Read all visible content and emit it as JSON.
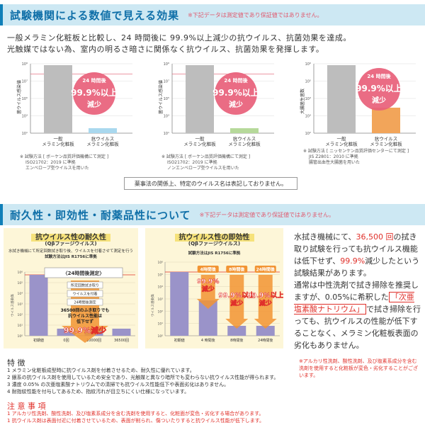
{
  "section1": {
    "title": "試験機関による数値で見える効果",
    "note": "※下記データは測定値であり保証値ではありません。",
    "lead1": "一般メラミン化粧板と比較し、24 時間後に 99.9%以上減少の抗ウイルス、抗菌効果を達成。",
    "lead2": "光触媒ではない為、室内の明るさ暗さに関係なく抗ウイルス、抗菌効果を発揮します。",
    "disclaimer": "薬事法の関係上、特定のウイルス名は表記しておりません。"
  },
  "charts_top": [
    {
      "ylabel": "菌ウイルス感染値",
      "ticks": [
        "10⁹",
        "10⁷",
        "10⁵",
        "10³",
        "10¹"
      ],
      "categories": [
        "一般\nメラミン化粧板",
        "抗ウイルス\nメラミン化粧板"
      ],
      "badge_top": "24 時間後",
      "badge_mid": "99.9%以上",
      "badge_bot": "減少",
      "bar2_color": "#a9d8ee",
      "notes": [
        "※ 試験方法 [ ボーケン品質評価機構にて測定 ]",
        "ISO21702：2019 に準拠",
        "エンベロープ型ウイルスを用いた"
      ]
    },
    {
      "ylabel": "菌ウイルス感染値",
      "ticks": [
        "10⁹",
        "10⁷",
        "10⁵",
        "10³",
        "10¹"
      ],
      "categories": [
        "一般\nメラミン化粧板",
        "抗ウイルス\nメラミン化粧板"
      ],
      "badge_top": "24 時間後",
      "badge_mid": "99.9%以上",
      "badge_bot": "減少",
      "bar2_color": "#b6d99a",
      "notes": [
        "※ 試験方法 [ ボーケン品質評価機構にて測定 ]",
        "ISO21702：2019 に準拠",
        "ノンエンベロープ型ウイルスを用いた"
      ]
    },
    {
      "ylabel": "大腸菌生菌数",
      "ticks": [
        "10⁶",
        "10⁵",
        "10⁴",
        "10³",
        "10²"
      ],
      "categories": [
        "一般\nメラミン化粧板",
        "抗ウイルス\nメラミン化粧板"
      ],
      "badge_top": "24 時間後",
      "badge_mid": "99.9%以上",
      "badge_bot": "減少",
      "bar2_color": "#f2a55a",
      "notes": [
        "※ 試験方法 [ ニッセンケン品質評価センターにて測定 ]",
        "JIS Z2801：2010 に準拠",
        "腸管出血性大腸菌を用いた"
      ]
    }
  ],
  "section2": {
    "title": "耐久性・即効性・耐薬品性について",
    "note": "※下記データは測定値であり保証値ではありません。"
  },
  "panel_left": {
    "title": "抗ウイルス性の耐久性",
    "subtitle": "(Qβファージウイルス)",
    "caption1": "水拭き機械にて所定回数拭き取り後、ウイルスを付着させて測定を行う",
    "caption2": "試験方法はJIS R1756に準拠",
    "flow_title": "〈24時間後測定〉",
    "flow_lines": [
      "所定回数拭き取り",
      "ウイルスを付着",
      "24時間後測定"
    ],
    "flow_text1": "36500回のふき取りでも",
    "flow_text2": "抗ウイルス性能は",
    "flow_text3": "低下せず",
    "flow_big": "99.9%減少",
    "categories": [
      "初期値",
      "0回",
      "10000回",
      "36500回"
    ],
    "ticks": [
      "10⁶",
      "10⁵",
      "10⁴",
      "10³",
      "10²",
      "10¹",
      "10⁰"
    ],
    "ylabel": "ウイルス感染価"
  },
  "panel_mid": {
    "title": "抗ウイルス性の即効性",
    "subtitle": "(Qβファージウイルス)",
    "caption2": "試験方法はJIS R1756に準拠",
    "categories": [
      "初期値",
      "4 時間後",
      "8時間後",
      "24時間後"
    ],
    "ticks": [
      "10⁶",
      "10⁵",
      "10⁴",
      "10³",
      "10²",
      "10¹",
      "10⁰"
    ],
    "ylabel": "ウイルス感染価",
    "tags": [
      "4時間後",
      "8時間後",
      "24時間後"
    ],
    "labels": [
      "99.9%\n減少",
      "99.9%以上\n減少",
      "99.9%以上\n減少"
    ]
  },
  "right_text": {
    "p1a": "水拭き機械にて、",
    "p1red": "36,500 回",
    "p1b": "の拭き取り試験を行っても抗ウイルス機能は低下せず、",
    "p1red2": "99.9%",
    "p1c": "減少したという試験結果があります。",
    "p2a": "通常は中性洗剤で拭き掃除を推奨しますが、0.05%に希釈した",
    "p2box": "「次亜塩素酸ナトリウム」",
    "p2b": "で拭き掃除を行っても、抗ウイルスの性能が低下することなく、メラミン化粧板表面の劣化もありません。",
    "note": "※アルカリ性洗剤、酸性洗剤、及び塩素系成分を含む洗剤を使用すると化粧板が変色・劣化することがございます。"
  },
  "features": {
    "heading": "特 徴",
    "items": [
      "1 メラミン化粧板成型時に抗ウイルス剤を付着させるため、耐久性に優れています。",
      "2 銀系の抗ウイルス剤を使用しているため安全であり、光触媒と異なり暗所でも変わらない抗ウイルス性能が得られます。",
      "3 濃度 0.05% の次亜塩素酸ナトリウムでの清掃でも抗ウイルス性能低下や表面劣化はありません。",
      "4 耐指紋性能を付与してあるため、指紋汚れが目立ちにくい仕様になっています。"
    ]
  },
  "caution": {
    "heading": "注 意 事 項",
    "items": [
      "1 アルカリ性洗剤、酸性洗剤、及び塩素系成分を含む洗剤を使用すると、化粧面が変色・劣化する場合があります。",
      "1 抗ウイルス剤は表面付近に付着させているため、表面が削られ、傷ついたりすると抗ウイルス性能が低下します。"
    ]
  },
  "colors": {
    "accent": "#0f6fa8",
    "panelbg": "#fdf6d8",
    "gray_bar": "#bdbdbd",
    "purple_bar": "#9a93c9",
    "orange": "#f29433",
    "pink_badge": "#e8607a",
    "red": "#e0302a"
  }
}
